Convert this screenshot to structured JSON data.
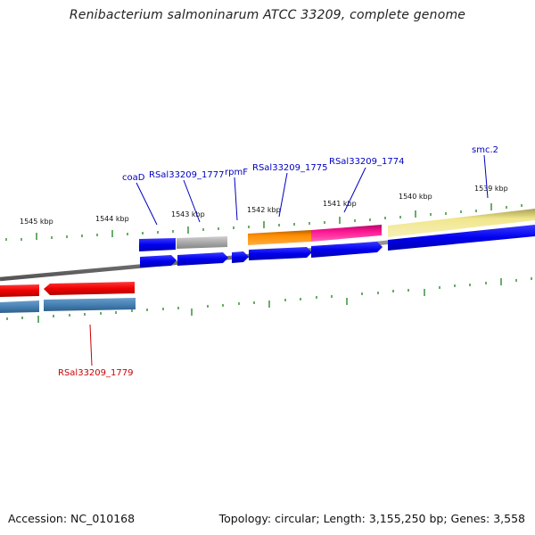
{
  "title": "Renibacterium salmoninarum ATCC 33209, complete genome",
  "footer": {
    "accession": "Accession: NC_010168",
    "summary": "Topology: circular; Length: 3,155,250 bp; Genes: 3,558"
  },
  "colors": {
    "backbone": "#808080",
    "tick": "#2a8a2a",
    "forward_label": "#0000c0",
    "reverse_label": "#cc0000",
    "cds_blue": "#0000ee",
    "steelblue": "#4682b4",
    "red": "#ee0000",
    "gray": "#a9a9a9",
    "orange": "#ff8c00",
    "pink": "#ff1493",
    "khaki": "#f0e68c"
  },
  "ticks": {
    "labels": [
      "1545 kbp",
      "1544 kbp",
      "1543 kbp",
      "1542 kbp",
      "1541 kbp",
      "1540 kbp",
      "1539 kbp"
    ]
  },
  "genes": {
    "forward_labels": [
      "coaD",
      "RSal33209_1777",
      "rpmF",
      "RSal33209_1775",
      "RSal33209_1774",
      "smc.2"
    ],
    "reverse_labels": [
      "RSal33209_1779"
    ]
  }
}
